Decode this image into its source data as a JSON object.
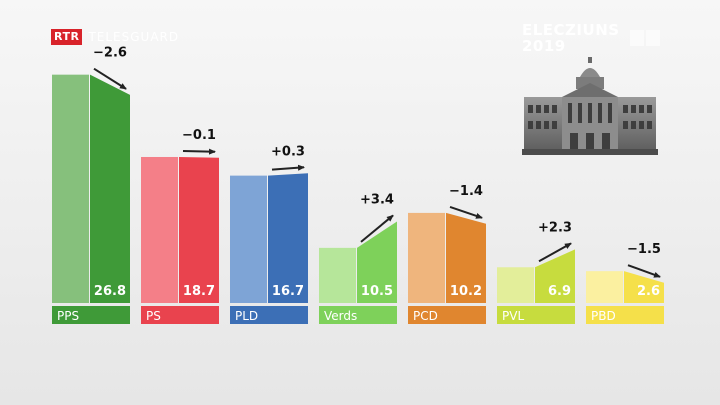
{
  "brand": {
    "badge": "RTR",
    "name": "TELESGUARD"
  },
  "election": {
    "line1": "ELECZIUNS",
    "line2": "2019"
  },
  "chart_data": {
    "type": "bar",
    "categories": [
      "PPS",
      "PS",
      "PLD",
      "Verds",
      "PCD",
      "PVL",
      "PBD"
    ],
    "values": [
      26.8,
      18.7,
      16.7,
      10.5,
      10.2,
      6.9,
      2.6
    ],
    "changes": [
      "−2.6",
      "−0.1",
      "+0.3",
      "+3.4",
      "−1.4",
      "+2.3",
      "−1.5"
    ],
    "value_labels": [
      "26.8",
      "18.7",
      "16.7",
      "10.5",
      "10.2",
      "6.9",
      "2.6"
    ],
    "previous": [
      29.4,
      18.8,
      16.4,
      7.1,
      11.6,
      4.6,
      4.1
    ],
    "colors": [
      "#3f9a38",
      "#e9434e",
      "#3c6fb6",
      "#7ed15a",
      "#e0862f",
      "#c7dc3e",
      "#f5e04a"
    ],
    "light_colors": [
      "#86c07c",
      "#f47f88",
      "#7ea4d6",
      "#b6e69a",
      "#efb57d",
      "#e3ee9a",
      "#fbf0a0"
    ],
    "ylim": [
      0,
      30
    ]
  }
}
